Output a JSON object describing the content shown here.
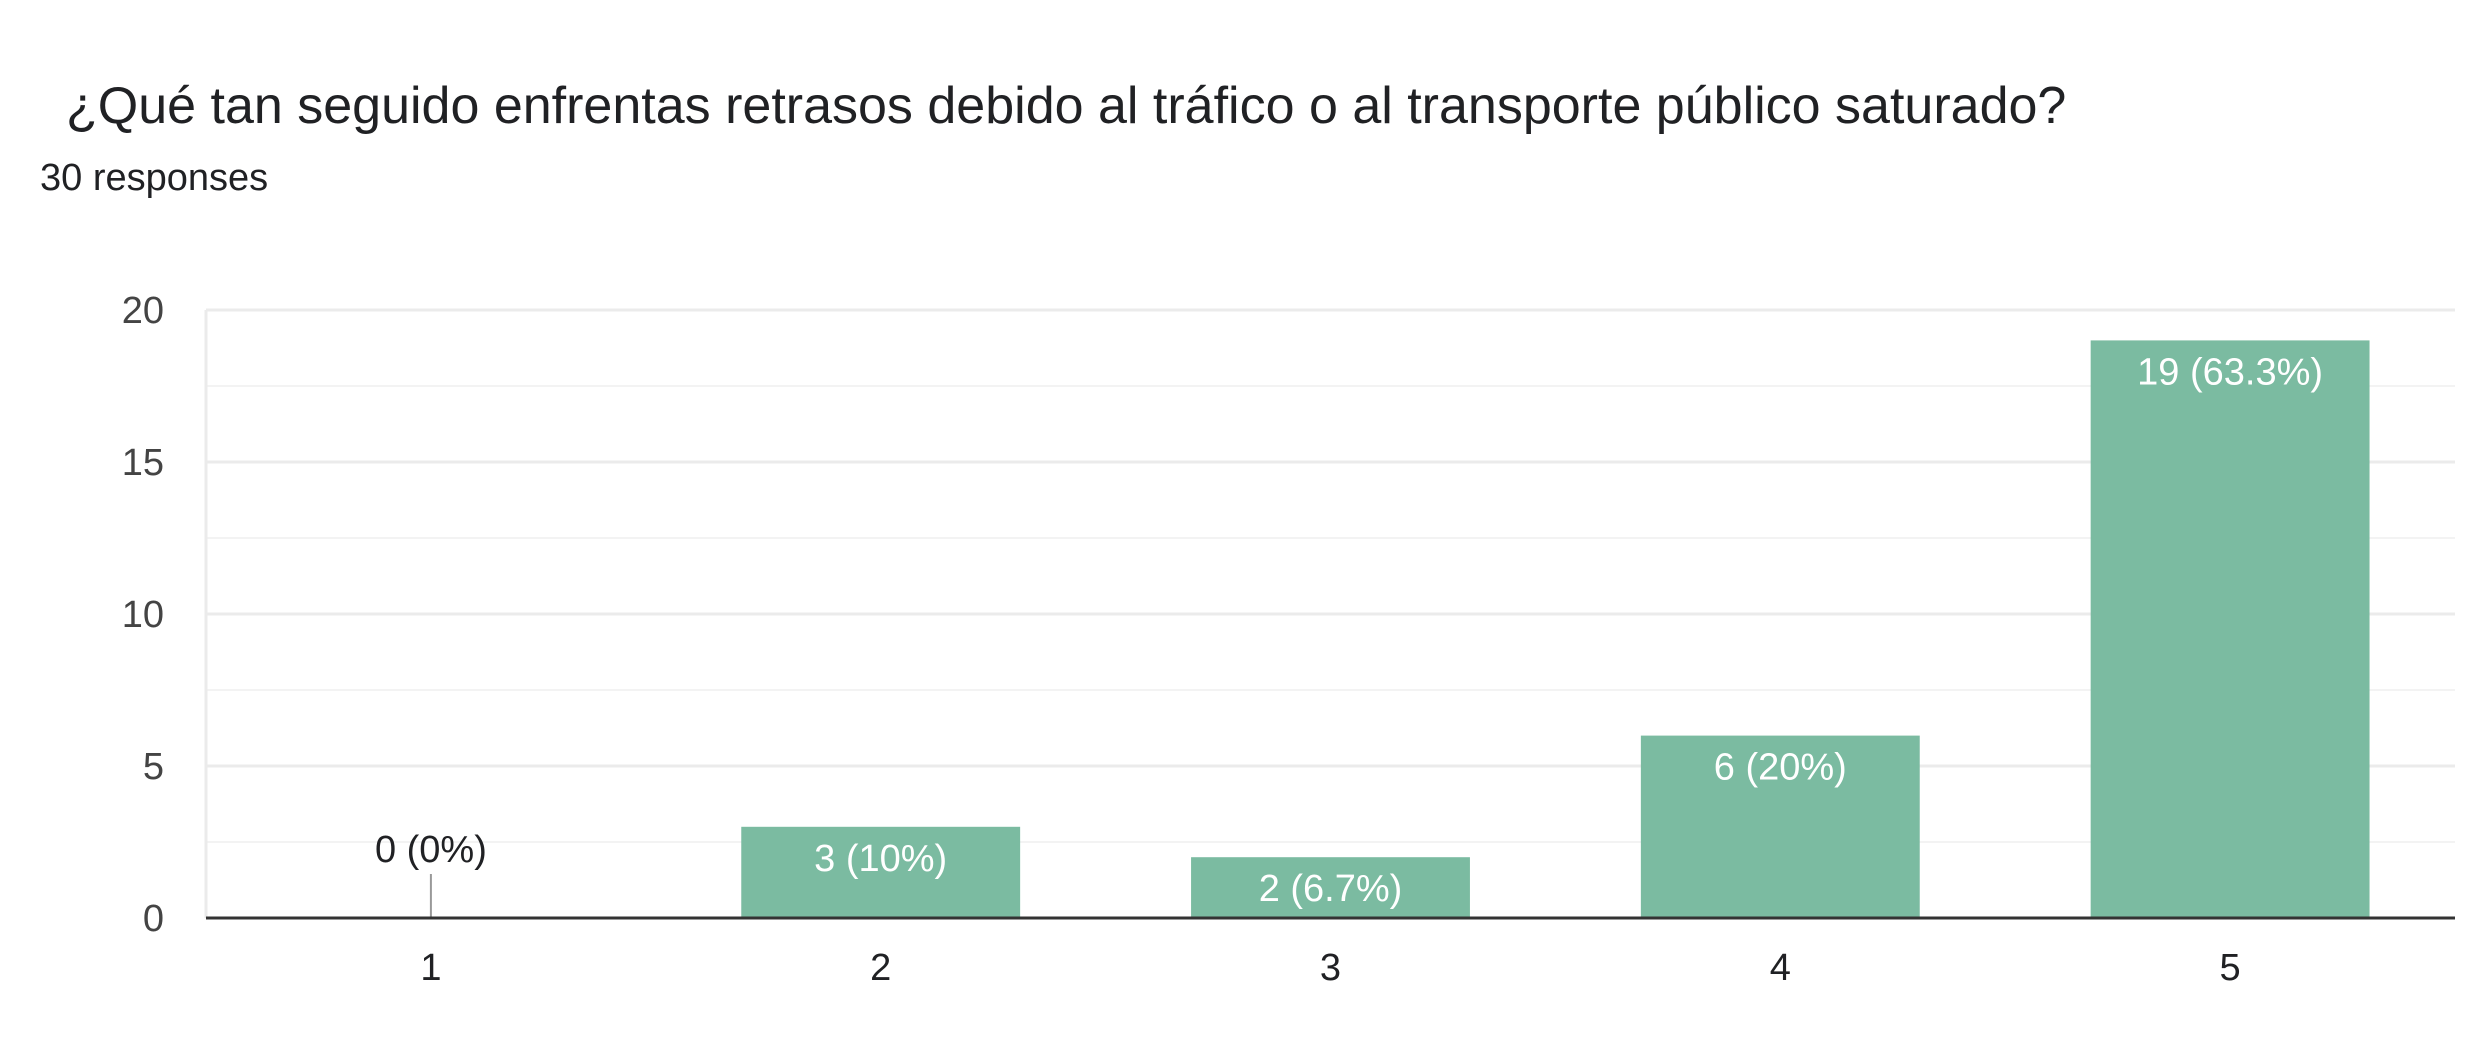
{
  "question": {
    "title": "¿Qué tan seguido enfrentas retrasos debido al tráfico o al transporte público saturado?",
    "responses": "30 responses"
  },
  "colors": {
    "bar": "#7bbba1",
    "bar_label_inside": "#ffffff",
    "bar_label_outside": "#202124",
    "gridline": "#ebebeb",
    "axis": "#333333",
    "tick_label": "#444444"
  },
  "chart_data": {
    "type": "bar",
    "title": "¿Qué tan seguido enfrentas retrasos debido al tráfico o al transporte público saturado?",
    "xlabel": "",
    "ylabel": "",
    "categories": [
      "1",
      "2",
      "3",
      "4",
      "5"
    ],
    "values": [
      0,
      3,
      2,
      6,
      19
    ],
    "data_labels": [
      "0 (0%)",
      "3 (10%)",
      "2 (6.7%)",
      "6 (20%)",
      "19 (63.3%)"
    ],
    "ylim": [
      0,
      20
    ],
    "yticks": [
      0,
      5,
      10,
      15,
      20
    ],
    "minor_gridlines": [
      2.5,
      7.5,
      12.5,
      17.5
    ],
    "grid": true,
    "legend": "none"
  }
}
